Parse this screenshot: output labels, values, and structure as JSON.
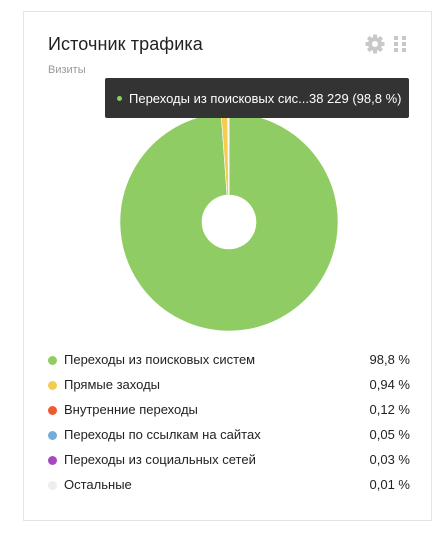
{
  "widget": {
    "title": "Источник трафика",
    "subtitle": "Визиты",
    "settings_icon": "gear-icon",
    "drag_icon": "grip-icon"
  },
  "tooltip": {
    "label": "Переходы из поисковых сис...",
    "value": "38 229 (98,8 %)",
    "color": "#8fcc63"
  },
  "legend": [
    {
      "label": "Переходы из поисковых систем",
      "percent": "98,8 %",
      "color": "#8fcc63"
    },
    {
      "label": "Прямые заходы",
      "percent": "0,94 %",
      "color": "#f5cc4f"
    },
    {
      "label": "Внутренние переходы",
      "percent": "0,12 %",
      "color": "#ef5a2f"
    },
    {
      "label": "Переходы по ссылкам на сайтах",
      "percent": "0,05 %",
      "color": "#74add9"
    },
    {
      "label": "Переходы из социальных сетей",
      "percent": "0,03 %",
      "color": "#a648c1"
    },
    {
      "label": "Остальные",
      "percent": "0,01 %",
      "color": "#eeeeee"
    }
  ],
  "chart_data": {
    "type": "pie",
    "title": "Источник трафика",
    "subtitle": "Визиты",
    "legend_position": "bottom",
    "slices": [
      {
        "name": "Переходы из поисковых систем",
        "value": 98.8,
        "color": "#8fcc63"
      },
      {
        "name": "Прямые заходы",
        "value": 0.94,
        "color": "#f5cc4f"
      },
      {
        "name": "Внутренние переходы",
        "value": 0.12,
        "color": "#ef5a2f"
      },
      {
        "name": "Переходы по ссылкам на сайтах",
        "value": 0.05,
        "color": "#74add9"
      },
      {
        "name": "Переходы из социальных сетей",
        "value": 0.03,
        "color": "#a648c1"
      },
      {
        "name": "Остальные",
        "value": 0.01,
        "color": "#eeeeee"
      }
    ]
  }
}
